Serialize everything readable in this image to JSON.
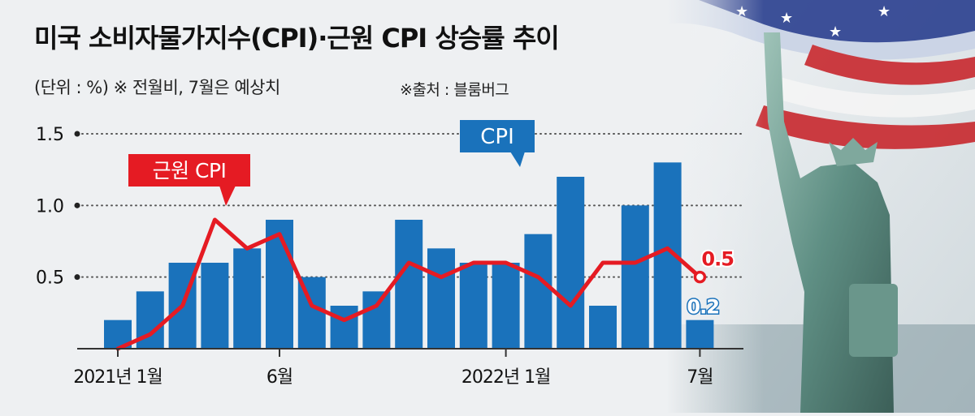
{
  "header": {
    "title": "미국 소비자물가지수(CPI)·근원 CPI 상승률 추이",
    "subtitle": "(단위 : %)  ※ 전월비, 7월은 예상치",
    "source": "※출처 : 블룸버그"
  },
  "colors": {
    "cpi_bar": "#1a72bb",
    "core_line": "#e51b23",
    "grid": "#555555",
    "text": "#111111",
    "background": "#eef0f2"
  },
  "chart_data": {
    "type": "bar",
    "categories": [
      "2021-01",
      "2021-02",
      "2021-03",
      "2021-04",
      "2021-05",
      "2021-06",
      "2021-07",
      "2021-08",
      "2021-09",
      "2021-10",
      "2021-11",
      "2021-12",
      "2022-01",
      "2022-02",
      "2022-03",
      "2022-04",
      "2022-05",
      "2022-06",
      "2022-07"
    ],
    "series": [
      {
        "name": "CPI",
        "type": "bar",
        "values": [
          0.2,
          0.4,
          0.6,
          0.6,
          0.7,
          0.9,
          0.5,
          0.3,
          0.4,
          0.9,
          0.7,
          0.6,
          0.6,
          0.8,
          1.2,
          0.3,
          1.0,
          1.3,
          0.2
        ]
      },
      {
        "name": "근원 CPI",
        "type": "line",
        "values": [
          0.0,
          0.1,
          0.3,
          0.9,
          0.7,
          0.8,
          0.3,
          0.2,
          0.3,
          0.6,
          0.5,
          0.6,
          0.6,
          0.5,
          0.3,
          0.6,
          0.6,
          0.7,
          0.5
        ]
      }
    ],
    "ylim": [
      0,
      1.5
    ],
    "yticks": [
      "0.5",
      "1.0",
      "1.5"
    ],
    "xtick_labels": [
      {
        "index": 0,
        "label": "2021년 1월"
      },
      {
        "index": 5,
        "label": "6월"
      },
      {
        "index": 12,
        "label": "2022년 1월"
      },
      {
        "index": 18,
        "label": "7월"
      }
    ],
    "callouts": {
      "cpi_label": "CPI",
      "core_label": "근원 CPI"
    },
    "end_labels": {
      "core_last": "0.5",
      "cpi_last": "0.2"
    },
    "grid": true
  }
}
